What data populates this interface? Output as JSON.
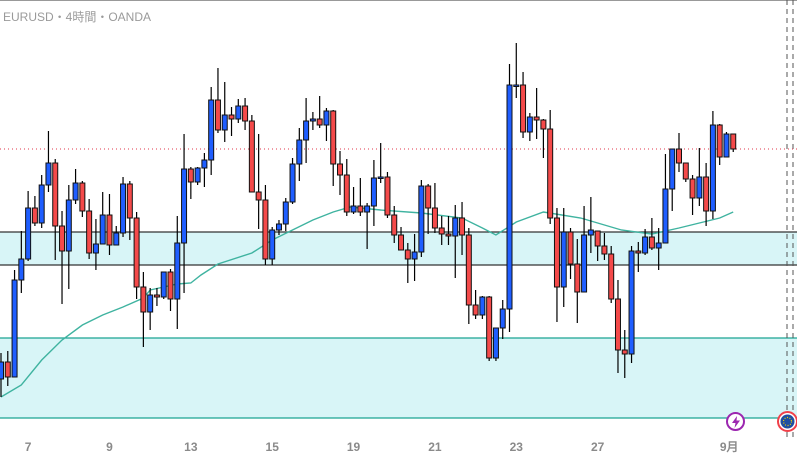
{
  "header": {
    "title": "EURUSD・4時間・OANDA"
  },
  "colors": {
    "up": "#1f5eff",
    "down": "#f44a4a",
    "ma": "#3fb3a0",
    "zone_fill": "#d8f5f7",
    "zone_line_dark": "#333333",
    "zone_line_teal": "#1aa392",
    "price_line": "#e0344a"
  },
  "icons": {
    "event": "lightning-event-icon",
    "flag": "eu-flag-icon"
  },
  "chart_data": {
    "type": "candlestick",
    "symbol": "EURUSD",
    "timeframe": "4時間",
    "ylim": [
      1.08,
      1.126
    ],
    "current_price": 1.1111,
    "zones": [
      {
        "top": 1.1028,
        "bottom": 1.0995,
        "line": "dark"
      },
      {
        "top": 1.0922,
        "bottom": 1.0842,
        "line": "teal"
      }
    ],
    "x_ticks": [
      {
        "index": 4,
        "label": "7"
      },
      {
        "index": 16,
        "label": "9"
      },
      {
        "index": 28,
        "label": "13"
      },
      {
        "index": 40,
        "label": "15"
      },
      {
        "index": 52,
        "label": "19"
      },
      {
        "index": 64,
        "label": "21"
      },
      {
        "index": 76,
        "label": "23"
      },
      {
        "index": 88,
        "label": "27"
      },
      {
        "index": 107.4,
        "label": "9月"
      }
    ],
    "ohlc": [
      [
        1.0881,
        1.0907,
        1.0863,
        1.0898
      ],
      [
        1.0898,
        1.0909,
        1.0874,
        1.0883
      ],
      [
        1.0883,
        1.099,
        1.0883,
        1.098
      ],
      [
        1.098,
        1.1029,
        1.0967,
        1.1001
      ],
      [
        1.1001,
        1.1069,
        1.0999,
        1.1052
      ],
      [
        1.1052,
        1.1064,
        1.1034,
        1.1037
      ],
      [
        1.1037,
        1.1085,
        1.1032,
        1.1075
      ],
      [
        1.1075,
        1.1129,
        1.1068,
        1.1097
      ],
      [
        1.1097,
        1.1101,
        1.1,
        1.1034
      ],
      [
        1.1034,
        1.1049,
        1.0956,
        1.1009
      ],
      [
        1.1009,
        1.1075,
        1.0971,
        1.106
      ],
      [
        1.106,
        1.1091,
        1.1056,
        1.1077
      ],
      [
        1.1077,
        1.1079,
        1.1043,
        1.1049
      ],
      [
        1.1049,
        1.1061,
        1.1001,
        1.1007
      ],
      [
        1.1007,
        1.1041,
        1.099,
        1.1016
      ],
      [
        1.1016,
        1.1068,
        1.1016,
        1.1045
      ],
      [
        1.1045,
        1.1066,
        1.1005,
        1.1015
      ],
      [
        1.1015,
        1.1034,
        1.1015,
        1.1027
      ],
      [
        1.1027,
        1.1083,
        1.1023,
        1.1076
      ],
      [
        1.1076,
        1.1079,
        1.102,
        1.1042
      ],
      [
        1.1042,
        1.1048,
        1.0961,
        1.0973
      ],
      [
        1.0973,
        1.0988,
        1.0913,
        1.0948
      ],
      [
        1.0948,
        1.0972,
        1.093,
        1.0965
      ],
      [
        1.0965,
        1.0972,
        1.0954,
        1.0963
      ],
      [
        1.0963,
        1.0988,
        1.0961,
        1.0988
      ],
      [
        1.0988,
        1.0991,
        1.0949,
        1.0961
      ],
      [
        1.0961,
        1.1044,
        1.0931,
        1.1017
      ],
      [
        1.1017,
        1.1126,
        1.0967,
        1.1091
      ],
      [
        1.1091,
        1.1093,
        1.1061,
        1.1078
      ],
      [
        1.1078,
        1.1093,
        1.1075,
        1.1092
      ],
      [
        1.1092,
        1.1107,
        1.1073,
        1.11
      ],
      [
        1.11,
        1.1173,
        1.1085,
        1.116
      ],
      [
        1.116,
        1.1192,
        1.1127,
        1.113
      ],
      [
        1.113,
        1.1178,
        1.1118,
        1.1145
      ],
      [
        1.1145,
        1.1153,
        1.1124,
        1.1141
      ],
      [
        1.1141,
        1.1161,
        1.1137,
        1.1154
      ],
      [
        1.1154,
        1.1162,
        1.113,
        1.1139
      ],
      [
        1.1139,
        1.1145,
        1.1068,
        1.1068
      ],
      [
        1.1068,
        1.1126,
        1.1031,
        1.106
      ],
      [
        1.106,
        1.1075,
        1.0995,
        1.1001
      ],
      [
        1.1001,
        1.1033,
        1.0995,
        1.103
      ],
      [
        1.103,
        1.104,
        1.1025,
        1.1036
      ],
      [
        1.1036,
        1.1062,
        1.1029,
        1.1058
      ],
      [
        1.1058,
        1.1102,
        1.1056,
        1.1096
      ],
      [
        1.1096,
        1.1132,
        1.1079,
        1.112
      ],
      [
        1.112,
        1.1162,
        1.1097,
        1.1139
      ],
      [
        1.1139,
        1.1148,
        1.113,
        1.1141
      ],
      [
        1.1141,
        1.1164,
        1.1132,
        1.1135
      ],
      [
        1.1135,
        1.1152,
        1.1119,
        1.1149
      ],
      [
        1.1149,
        1.115,
        1.1074,
        1.1096
      ],
      [
        1.1096,
        1.1109,
        1.1065,
        1.1085
      ],
      [
        1.1085,
        1.1101,
        1.1044,
        1.1048
      ],
      [
        1.1048,
        1.1073,
        1.1046,
        1.1054
      ],
      [
        1.1054,
        1.1082,
        1.1044,
        1.1048
      ],
      [
        1.1048,
        1.1057,
        1.1011,
        1.1054
      ],
      [
        1.1054,
        1.11,
        1.1034,
        1.1082
      ],
      [
        1.1082,
        1.1117,
        1.1077,
        1.1083
      ],
      [
        1.1083,
        1.1088,
        1.1042,
        1.1045
      ],
      [
        1.1045,
        1.1054,
        1.1017,
        1.1025
      ],
      [
        1.1025,
        1.1033,
        1.101,
        1.101
      ],
      [
        1.101,
        1.1017,
        1.0977,
        1.1001
      ],
      [
        1.1001,
        1.1026,
        1.0979,
        1.1008
      ],
      [
        1.1008,
        1.108,
        1.1003,
        1.1074
      ],
      [
        1.1074,
        1.1076,
        1.1026,
        1.1052
      ],
      [
        1.1052,
        1.1077,
        1.1027,
        1.1032
      ],
      [
        1.1032,
        1.1044,
        1.1015,
        1.1026
      ],
      [
        1.1026,
        1.1044,
        1.1015,
        1.1024
      ],
      [
        1.1024,
        1.1055,
        1.0982,
        1.1042
      ],
      [
        1.1042,
        1.1058,
        1.1005,
        1.1025
      ],
      [
        1.1025,
        1.1032,
        1.0936,
        1.0955
      ],
      [
        1.0955,
        1.097,
        1.0941,
        1.0945
      ],
      [
        1.0945,
        1.0964,
        1.0941,
        1.0963
      ],
      [
        1.0963,
        1.0964,
        1.0899,
        1.0902
      ],
      [
        1.0902,
        1.0932,
        1.0899,
        1.0932
      ],
      [
        1.0932,
        1.096,
        1.0921,
        1.0951
      ],
      [
        1.0951,
        1.1196,
        1.0928,
        1.1175
      ],
      [
        1.1174,
        1.1217,
        1.1162,
        1.1175
      ],
      [
        1.1175,
        1.1188,
        1.1122,
        1.1128
      ],
      [
        1.1128,
        1.1147,
        1.1119,
        1.1143
      ],
      [
        1.1143,
        1.1172,
        1.1121,
        1.114
      ],
      [
        1.114,
        1.1141,
        1.1102,
        1.1131
      ],
      [
        1.1131,
        1.115,
        1.1036,
        1.1042
      ],
      [
        1.1042,
        1.1052,
        1.0938,
        1.0973
      ],
      [
        1.0973,
        1.1052,
        1.0953,
        1.1028
      ],
      [
        1.1028,
        1.1032,
        1.0981,
        1.0996
      ],
      [
        1.0996,
        1.1021,
        1.0937,
        1.0968
      ],
      [
        1.0968,
        1.1054,
        1.0968,
        1.1025
      ],
      [
        1.1025,
        1.1063,
        1.1007,
        1.103
      ],
      [
        1.1029,
        1.1029,
        1.0999,
        1.1014
      ],
      [
        1.1014,
        1.1027,
        1.1,
        1.1006
      ],
      [
        1.1006,
        1.1014,
        1.0957,
        1.0961
      ],
      [
        1.0961,
        1.098,
        1.0887,
        1.091
      ],
      [
        1.091,
        1.093,
        1.0882,
        1.0906
      ],
      [
        1.0906,
        1.1014,
        1.0897,
        1.1009
      ],
      [
        1.1009,
        1.1018,
        1.0988,
        1.1007
      ],
      [
        1.1007,
        1.1031,
        1.1005,
        1.1023
      ],
      [
        1.1023,
        1.1042,
        1.101,
        1.1012
      ],
      [
        1.1012,
        1.1032,
        1.099,
        1.1017
      ],
      [
        1.1017,
        1.1106,
        1.1017,
        1.1071
      ],
      [
        1.1071,
        1.1111,
        1.1049,
        1.1111
      ],
      [
        1.1111,
        1.1127,
        1.1088,
        1.1097
      ],
      [
        1.1097,
        1.1097,
        1.1078,
        1.1081
      ],
      [
        1.1081,
        1.1085,
        1.1045,
        1.1062
      ],
      [
        1.1062,
        1.1112,
        1.1054,
        1.1083
      ],
      [
        1.1083,
        1.1097,
        1.1034,
        1.1049
      ],
      [
        1.1049,
        1.1149,
        1.1041,
        1.1135
      ],
      [
        1.1135,
        1.1136,
        1.1095,
        1.1103
      ],
      [
        1.1103,
        1.1128,
        1.1103,
        1.1126
      ],
      [
        1.1126,
        1.1126,
        1.1108,
        1.1111
      ]
    ],
    "moving_average": [
      [
        0,
        1.0863
      ],
      [
        3,
        1.0875
      ],
      [
        6,
        1.09
      ],
      [
        9,
        1.092
      ],
      [
        12,
        1.0935
      ],
      [
        15,
        1.0945
      ],
      [
        18,
        1.0953
      ],
      [
        21,
        1.0962
      ],
      [
        22,
        1.097
      ],
      [
        24,
        1.0973
      ],
      [
        26,
        1.0976
      ],
      [
        28,
        1.0977
      ],
      [
        29.5,
        1.0985
      ],
      [
        32,
        1.0996
      ],
      [
        37,
        1.1007
      ],
      [
        40,
        1.102
      ],
      [
        43,
        1.103
      ],
      [
        46,
        1.104
      ],
      [
        49,
        1.1048
      ],
      [
        51.5,
        1.1053
      ],
      [
        56,
        1.105
      ],
      [
        62,
        1.1047
      ],
      [
        68,
        1.1042
      ],
      [
        71,
        1.1032
      ],
      [
        73,
        1.1025
      ],
      [
        76,
        1.1038
      ],
      [
        80,
        1.1048
      ],
      [
        85.5,
        1.1042
      ],
      [
        91.5,
        1.103
      ],
      [
        96,
        1.1026
      ],
      [
        100,
        1.1032
      ],
      [
        106,
        1.1042
      ],
      [
        108,
        1.1048
      ]
    ]
  }
}
